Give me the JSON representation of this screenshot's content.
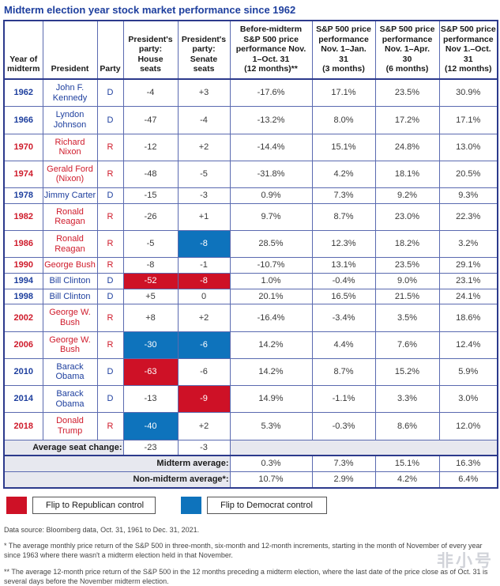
{
  "title": "Midterm election year stock market performance since 1962",
  "colors": {
    "title_blue": "#1e3f9e",
    "democrat_text": "#1e3f9e",
    "republican_text": "#cf1b2b",
    "flip_republican_bg": "#ce1126",
    "flip_democrat_bg": "#0e73bc",
    "summary_label_bg": "#e7e8ef",
    "outer_border": "#2c3a8c",
    "grid_border": "#5a6ab0"
  },
  "table": {
    "headers": [
      "Year of\nmidterm",
      "President",
      "Party",
      "President's\nparty:\nHouse\nseats",
      "President's\nparty:\nSenate\nseats",
      "Before-midterm\nS&P 500 price\nperformance Nov.\n1–Oct. 31\n(12 months)**",
      "S&P 500 price\nperformance\nNov. 1–Jan.\n31\n(3 months)",
      "S&P 500 price\nperformance\nNov. 1–Apr.\n30\n(6 months)",
      "S&P 500 price\nperformance\nNov 1.–Oct. 31\n(12 months)"
    ],
    "rows": [
      {
        "year": "1962",
        "president": "John F.\nKennedy",
        "party": "D",
        "party_class": "dem",
        "house": "-4",
        "senate": "+3",
        "house_flip": null,
        "senate_flip": null,
        "before": "-17.6%",
        "m3": "17.1%",
        "m6": "23.5%",
        "m12": "30.9%",
        "two_line": true
      },
      {
        "year": "1966",
        "president": "Lyndon\nJohnson",
        "party": "D",
        "party_class": "dem",
        "house": "-47",
        "senate": "-4",
        "house_flip": null,
        "senate_flip": null,
        "before": "-13.2%",
        "m3": "8.0%",
        "m6": "17.2%",
        "m12": "17.1%",
        "two_line": true
      },
      {
        "year": "1970",
        "president": "Richard\nNixon",
        "party": "R",
        "party_class": "rep",
        "house": "-12",
        "senate": "+2",
        "house_flip": null,
        "senate_flip": null,
        "before": "-14.4%",
        "m3": "15.1%",
        "m6": "24.8%",
        "m12": "13.0%",
        "two_line": true
      },
      {
        "year": "1974",
        "president": "Gerald Ford\n(Nixon)",
        "party": "R",
        "party_class": "rep",
        "house": "-48",
        "senate": "-5",
        "house_flip": null,
        "senate_flip": null,
        "before": "-31.8%",
        "m3": "4.2%",
        "m6": "18.1%",
        "m12": "20.5%",
        "two_line": true
      },
      {
        "year": "1978",
        "president": "Jimmy Carter",
        "party": "D",
        "party_class": "dem",
        "house": "-15",
        "senate": "-3",
        "house_flip": null,
        "senate_flip": null,
        "before": "0.9%",
        "m3": "7.3%",
        "m6": "9.2%",
        "m12": "9.3%",
        "two_line": false
      },
      {
        "year": "1982",
        "president": "Ronald\nReagan",
        "party": "R",
        "party_class": "rep",
        "house": "-26",
        "senate": "+1",
        "house_flip": null,
        "senate_flip": null,
        "before": "9.7%",
        "m3": "8.7%",
        "m6": "23.0%",
        "m12": "22.3%",
        "two_line": true
      },
      {
        "year": "1986",
        "president": "Ronald\nReagan",
        "party": "R",
        "party_class": "rep",
        "house": "-5",
        "senate": "-8",
        "house_flip": null,
        "senate_flip": "dem",
        "before": "28.5%",
        "m3": "12.3%",
        "m6": "18.2%",
        "m12": "3.2%",
        "two_line": true
      },
      {
        "year": "1990",
        "president": "George Bush",
        "party": "R",
        "party_class": "rep",
        "house": "-8",
        "senate": "-1",
        "house_flip": null,
        "senate_flip": null,
        "before": "-10.7%",
        "m3": "13.1%",
        "m6": "23.5%",
        "m12": "29.1%",
        "two_line": false
      },
      {
        "year": "1994",
        "president": "Bill Clinton",
        "party": "D",
        "party_class": "dem",
        "house": "-52",
        "senate": "-8",
        "house_flip": "rep",
        "senate_flip": "rep",
        "before": "1.0%",
        "m3": "-0.4%",
        "m6": "9.0%",
        "m12": "23.1%",
        "two_line": false
      },
      {
        "year": "1998",
        "president": "Bill Clinton",
        "party": "D",
        "party_class": "dem",
        "house": "+5",
        "senate": "0",
        "house_flip": null,
        "senate_flip": null,
        "before": "20.1%",
        "m3": "16.5%",
        "m6": "21.5%",
        "m12": "24.1%",
        "two_line": false
      },
      {
        "year": "2002",
        "president": "George W.\nBush",
        "party": "R",
        "party_class": "rep",
        "house": "+8",
        "senate": "+2",
        "house_flip": null,
        "senate_flip": null,
        "before": "-16.4%",
        "m3": "-3.4%",
        "m6": "3.5%",
        "m12": "18.6%",
        "two_line": true
      },
      {
        "year": "2006",
        "president": "George W.\nBush",
        "party": "R",
        "party_class": "rep",
        "house": "-30",
        "senate": "-6",
        "house_flip": "dem",
        "senate_flip": "dem",
        "before": "14.2%",
        "m3": "4.4%",
        "m6": "7.6%",
        "m12": "12.4%",
        "two_line": true
      },
      {
        "year": "2010",
        "president": "Barack\nObama",
        "party": "D",
        "party_class": "dem",
        "house": "-63",
        "senate": "-6",
        "house_flip": "rep",
        "senate_flip": null,
        "before": "14.2%",
        "m3": "8.7%",
        "m6": "15.2%",
        "m12": "5.9%",
        "two_line": true
      },
      {
        "year": "2014",
        "president": "Barack\nObama",
        "party": "D",
        "party_class": "dem",
        "house": "-13",
        "senate": "-9",
        "house_flip": null,
        "senate_flip": "rep",
        "before": "14.9%",
        "m3": "-1.1%",
        "m6": "3.3%",
        "m12": "3.0%",
        "two_line": true
      },
      {
        "year": "2018",
        "president": "Donald\nTrump",
        "party": "R",
        "party_class": "rep",
        "house": "-40",
        "senate": "+2",
        "house_flip": "dem",
        "senate_flip": null,
        "before": "5.3%",
        "m3": "-0.3%",
        "m6": "8.6%",
        "m12": "12.0%",
        "two_line": true
      }
    ],
    "avg_seat_row": {
      "label": "Average seat change:",
      "house": "-23",
      "senate": "-3"
    },
    "midterm_avg_row": {
      "label": "Midterm average:",
      "values": [
        "0.3%",
        "7.3%",
        "15.1%",
        "16.3%"
      ]
    },
    "non_midterm_avg_row": {
      "label": "Non-midterm average*:",
      "values": [
        "10.7%",
        "2.9%",
        "4.2%",
        "6.4%"
      ]
    }
  },
  "legend": [
    {
      "label": "Flip to Republican control",
      "color": "#ce1126"
    },
    {
      "label": "Flip to Democrat control",
      "color": "#0e73bc"
    }
  ],
  "source": "Data source: Bloomberg data, Oct. 31, 1961 to Dec. 31, 2021.",
  "footnotes": [
    "* The average monthly price return of the S&P 500 in three-month, six-month and 12-month increments, starting in the month of November of every year since 1963 where there wasn't a midterm election held in that November.",
    "** The average 12-month price return of the S&P 500 in the 12 months preceding a midterm election, where the last date of the price close as of Oct. 31 is several days before the November midterm election."
  ],
  "watermark": "非小号",
  "chart_data": {
    "type": "table",
    "title": "Midterm election year stock market performance since 1962",
    "columns": [
      "Year of midterm",
      "President",
      "Party",
      "President's party: House seats",
      "President's party: Senate seats",
      "Before-midterm S&P 500 price performance Nov. 1–Oct. 31 (12 months)**",
      "S&P 500 price performance Nov. 1–Jan. 31 (3 months)",
      "S&P 500 price performance Nov. 1–Apr. 30 (6 months)",
      "S&P 500 price performance Nov 1.–Oct. 31 (12 months)"
    ],
    "rows": [
      [
        "1962",
        "John F. Kennedy",
        "D",
        "-4",
        "+3",
        "-17.6%",
        "17.1%",
        "23.5%",
        "30.9%"
      ],
      [
        "1966",
        "Lyndon Johnson",
        "D",
        "-47",
        "-4",
        "-13.2%",
        "8.0%",
        "17.2%",
        "17.1%"
      ],
      [
        "1970",
        "Richard Nixon",
        "R",
        "-12",
        "+2",
        "-14.4%",
        "15.1%",
        "24.8%",
        "13.0%"
      ],
      [
        "1974",
        "Gerald Ford (Nixon)",
        "R",
        "-48",
        "-5",
        "-31.8%",
        "4.2%",
        "18.1%",
        "20.5%"
      ],
      [
        "1978",
        "Jimmy Carter",
        "D",
        "-15",
        "-3",
        "0.9%",
        "7.3%",
        "9.2%",
        "9.3%"
      ],
      [
        "1982",
        "Ronald Reagan",
        "R",
        "-26",
        "+1",
        "9.7%",
        "8.7%",
        "23.0%",
        "22.3%"
      ],
      [
        "1986",
        "Ronald Reagan",
        "R",
        "-5",
        "-8",
        "28.5%",
        "12.3%",
        "18.2%",
        "3.2%"
      ],
      [
        "1990",
        "George Bush",
        "R",
        "-8",
        "-1",
        "-10.7%",
        "13.1%",
        "23.5%",
        "29.1%"
      ],
      [
        "1994",
        "Bill Clinton",
        "D",
        "-52",
        "-8",
        "1.0%",
        "-0.4%",
        "9.0%",
        "23.1%"
      ],
      [
        "1998",
        "Bill Clinton",
        "D",
        "+5",
        "0",
        "20.1%",
        "16.5%",
        "21.5%",
        "24.1%"
      ],
      [
        "2002",
        "George W. Bush",
        "R",
        "+8",
        "+2",
        "-16.4%",
        "-3.4%",
        "3.5%",
        "18.6%"
      ],
      [
        "2006",
        "George W. Bush",
        "R",
        "-30",
        "-6",
        "14.2%",
        "4.4%",
        "7.6%",
        "12.4%"
      ],
      [
        "2010",
        "Barack Obama",
        "D",
        "-63",
        "-6",
        "14.2%",
        "8.7%",
        "15.2%",
        "5.9%"
      ],
      [
        "2014",
        "Barack Obama",
        "D",
        "-13",
        "-9",
        "14.9%",
        "-1.1%",
        "3.3%",
        "3.0%"
      ],
      [
        "2018",
        "Donald Trump",
        "R",
        "-40",
        "+2",
        "5.3%",
        "-0.3%",
        "8.6%",
        "12.0%"
      ]
    ],
    "summary_rows": [
      {
        "label": "Average seat change:",
        "house": "-23",
        "senate": "-3"
      },
      {
        "label": "Midterm average:",
        "values": [
          "0.3%",
          "7.3%",
          "15.1%",
          "16.3%"
        ]
      },
      {
        "label": "Non-midterm average*:",
        "values": [
          "10.7%",
          "2.9%",
          "4.2%",
          "6.4%"
        ]
      }
    ],
    "highlights": [
      {
        "row": "1986",
        "column": "Senate seats",
        "flip": "Democrat"
      },
      {
        "row": "1994",
        "column": "House seats",
        "flip": "Republican"
      },
      {
        "row": "1994",
        "column": "Senate seats",
        "flip": "Republican"
      },
      {
        "row": "2006",
        "column": "House seats",
        "flip": "Democrat"
      },
      {
        "row": "2006",
        "column": "Senate seats",
        "flip": "Democrat"
      },
      {
        "row": "2010",
        "column": "House seats",
        "flip": "Republican"
      },
      {
        "row": "2014",
        "column": "Senate seats",
        "flip": "Republican"
      },
      {
        "row": "2018",
        "column": "House seats",
        "flip": "Democrat"
      }
    ]
  }
}
